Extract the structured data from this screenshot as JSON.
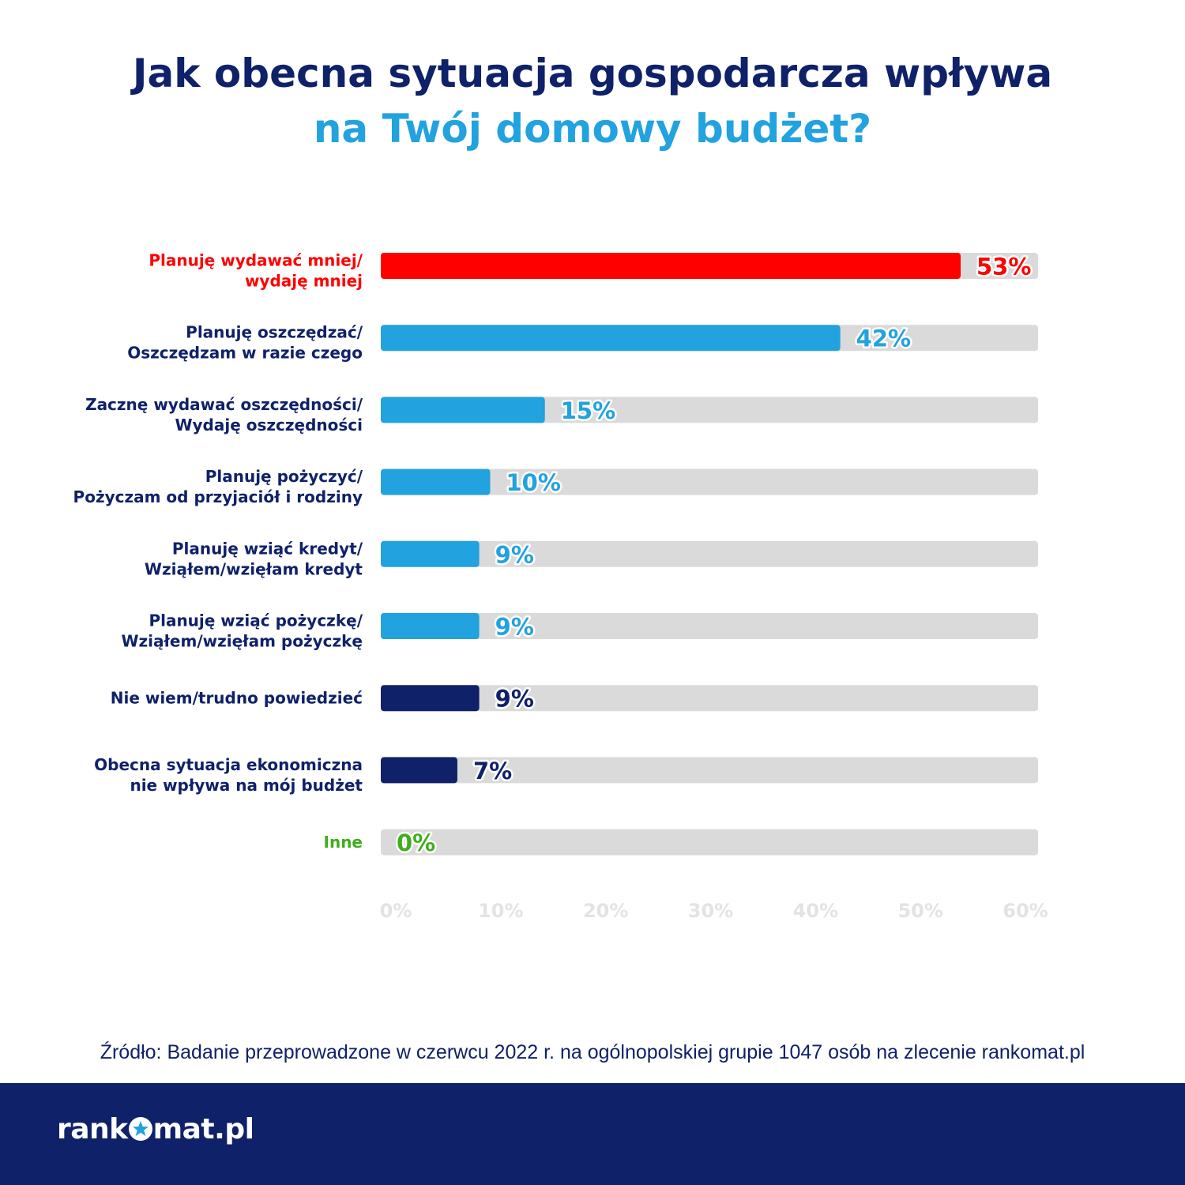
{
  "title": {
    "line1": "Jak obecna sytuacja gospodarcza wpływa",
    "line2": "na Twój domowy budżet?"
  },
  "chart_data": {
    "type": "bar",
    "orientation": "horizontal",
    "xlim": [
      0,
      60
    ],
    "x_ticks": [
      "0%",
      "10%",
      "20%",
      "30%",
      "40%",
      "50%",
      "60%"
    ],
    "grid": false,
    "categories": [
      {
        "lines": [
          "Planuję wydawać mniej/",
          "wydaję mniej"
        ],
        "value": 53,
        "value_label": "53%",
        "color": "#ff0000",
        "label_color": "#ff0000"
      },
      {
        "lines": [
          "Planuję oszczędzać/",
          "Oszczędzam w razie czego"
        ],
        "value": 42,
        "value_label": "42%",
        "color": "#22a2de",
        "label_color": "#0f2169"
      },
      {
        "lines": [
          "Zacznę wydawać oszczędności/",
          "Wydaję oszczędności"
        ],
        "value": 15,
        "value_label": "15%",
        "color": "#22a2de",
        "label_color": "#0f2169"
      },
      {
        "lines": [
          "Planuję pożyczyć/",
          "Pożyczam od przyjaciół i rodziny"
        ],
        "value": 10,
        "value_label": "10%",
        "color": "#22a2de",
        "label_color": "#0f2169"
      },
      {
        "lines": [
          "Planuję wziąć kredyt/",
          "Wziąłem/wzięłam kredyt"
        ],
        "value": 9,
        "value_label": "9%",
        "color": "#22a2de",
        "label_color": "#0f2169"
      },
      {
        "lines": [
          "Planuję wziąć pożyczkę/",
          "Wziąłem/wzięłam pożyczkę"
        ],
        "value": 9,
        "value_label": "9%",
        "color": "#22a2de",
        "label_color": "#0f2169"
      },
      {
        "lines": [
          "Nie wiem/trudno powiedzieć"
        ],
        "value": 9,
        "value_label": "9%",
        "color": "#0f2169",
        "label_color": "#0f2169"
      },
      {
        "lines": [
          "Obecna sytuacja ekonomiczna",
          "nie wpływa na mój budżet"
        ],
        "value": 7,
        "value_label": "7%",
        "color": "#0f2169",
        "label_color": "#0f2169"
      },
      {
        "lines": [
          "Inne"
        ],
        "value": 0,
        "value_label": "0%",
        "color": "#3fae1c",
        "label_color": "#3fae1c"
      }
    ],
    "track_color": "#dadada"
  },
  "source": "Źródło: Badanie przeprowadzone w czerwcu 2022 r. na ogólnopolskiej grupie 1047 osób na zlecenie rankomat.pl",
  "logo": {
    "before": "rank",
    "after": "mat.pl",
    "icon": "star-icon"
  }
}
